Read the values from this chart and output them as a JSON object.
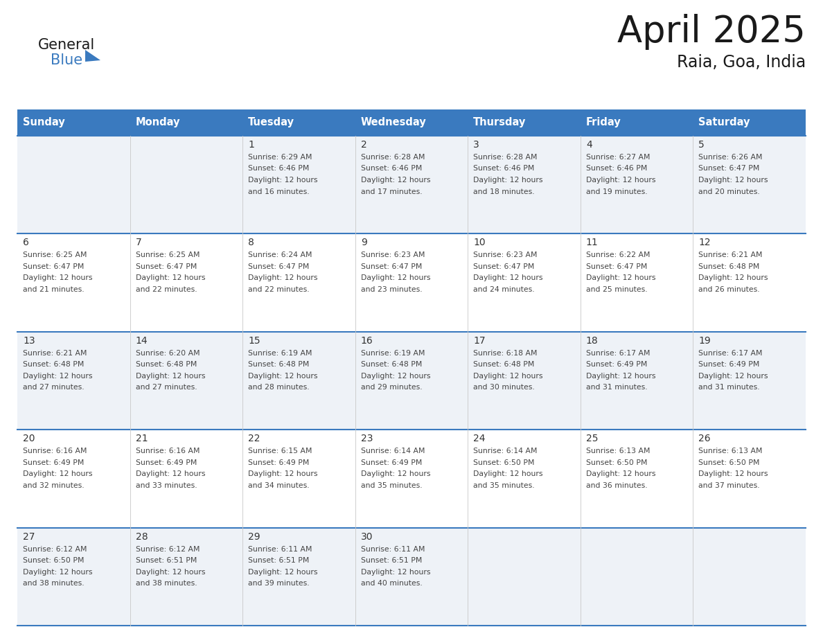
{
  "title": "April 2025",
  "subtitle": "Raia, Goa, India",
  "days_of_week": [
    "Sunday",
    "Monday",
    "Tuesday",
    "Wednesday",
    "Thursday",
    "Friday",
    "Saturday"
  ],
  "header_bg": "#3a7abf",
  "header_text": "#ffffff",
  "row_bg_odd": "#eef2f7",
  "row_bg_even": "#ffffff",
  "border_color": "#3a7abf",
  "day_text_color": "#333333",
  "info_text_color": "#444444",
  "calendar_data": [
    {
      "day": 1,
      "col": 2,
      "row": 0,
      "sunrise": "6:29 AM",
      "sunset": "6:46 PM",
      "daylight_suffix": "16 minutes."
    },
    {
      "day": 2,
      "col": 3,
      "row": 0,
      "sunrise": "6:28 AM",
      "sunset": "6:46 PM",
      "daylight_suffix": "17 minutes."
    },
    {
      "day": 3,
      "col": 4,
      "row": 0,
      "sunrise": "6:28 AM",
      "sunset": "6:46 PM",
      "daylight_suffix": "18 minutes."
    },
    {
      "day": 4,
      "col": 5,
      "row": 0,
      "sunrise": "6:27 AM",
      "sunset": "6:46 PM",
      "daylight_suffix": "19 minutes."
    },
    {
      "day": 5,
      "col": 6,
      "row": 0,
      "sunrise": "6:26 AM",
      "sunset": "6:47 PM",
      "daylight_suffix": "20 minutes."
    },
    {
      "day": 6,
      "col": 0,
      "row": 1,
      "sunrise": "6:25 AM",
      "sunset": "6:47 PM",
      "daylight_suffix": "21 minutes."
    },
    {
      "day": 7,
      "col": 1,
      "row": 1,
      "sunrise": "6:25 AM",
      "sunset": "6:47 PM",
      "daylight_suffix": "22 minutes."
    },
    {
      "day": 8,
      "col": 2,
      "row": 1,
      "sunrise": "6:24 AM",
      "sunset": "6:47 PM",
      "daylight_suffix": "22 minutes."
    },
    {
      "day": 9,
      "col": 3,
      "row": 1,
      "sunrise": "6:23 AM",
      "sunset": "6:47 PM",
      "daylight_suffix": "23 minutes."
    },
    {
      "day": 10,
      "col": 4,
      "row": 1,
      "sunrise": "6:23 AM",
      "sunset": "6:47 PM",
      "daylight_suffix": "24 minutes."
    },
    {
      "day": 11,
      "col": 5,
      "row": 1,
      "sunrise": "6:22 AM",
      "sunset": "6:47 PM",
      "daylight_suffix": "25 minutes."
    },
    {
      "day": 12,
      "col": 6,
      "row": 1,
      "sunrise": "6:21 AM",
      "sunset": "6:48 PM",
      "daylight_suffix": "26 minutes."
    },
    {
      "day": 13,
      "col": 0,
      "row": 2,
      "sunrise": "6:21 AM",
      "sunset": "6:48 PM",
      "daylight_suffix": "27 minutes."
    },
    {
      "day": 14,
      "col": 1,
      "row": 2,
      "sunrise": "6:20 AM",
      "sunset": "6:48 PM",
      "daylight_suffix": "27 minutes."
    },
    {
      "day": 15,
      "col": 2,
      "row": 2,
      "sunrise": "6:19 AM",
      "sunset": "6:48 PM",
      "daylight_suffix": "28 minutes."
    },
    {
      "day": 16,
      "col": 3,
      "row": 2,
      "sunrise": "6:19 AM",
      "sunset": "6:48 PM",
      "daylight_suffix": "29 minutes."
    },
    {
      "day": 17,
      "col": 4,
      "row": 2,
      "sunrise": "6:18 AM",
      "sunset": "6:48 PM",
      "daylight_suffix": "30 minutes."
    },
    {
      "day": 18,
      "col": 5,
      "row": 2,
      "sunrise": "6:17 AM",
      "sunset": "6:49 PM",
      "daylight_suffix": "31 minutes."
    },
    {
      "day": 19,
      "col": 6,
      "row": 2,
      "sunrise": "6:17 AM",
      "sunset": "6:49 PM",
      "daylight_suffix": "31 minutes."
    },
    {
      "day": 20,
      "col": 0,
      "row": 3,
      "sunrise": "6:16 AM",
      "sunset": "6:49 PM",
      "daylight_suffix": "32 minutes."
    },
    {
      "day": 21,
      "col": 1,
      "row": 3,
      "sunrise": "6:16 AM",
      "sunset": "6:49 PM",
      "daylight_suffix": "33 minutes."
    },
    {
      "day": 22,
      "col": 2,
      "row": 3,
      "sunrise": "6:15 AM",
      "sunset": "6:49 PM",
      "daylight_suffix": "34 minutes."
    },
    {
      "day": 23,
      "col": 3,
      "row": 3,
      "sunrise": "6:14 AM",
      "sunset": "6:49 PM",
      "daylight_suffix": "35 minutes."
    },
    {
      "day": 24,
      "col": 4,
      "row": 3,
      "sunrise": "6:14 AM",
      "sunset": "6:50 PM",
      "daylight_suffix": "35 minutes."
    },
    {
      "day": 25,
      "col": 5,
      "row": 3,
      "sunrise": "6:13 AM",
      "sunset": "6:50 PM",
      "daylight_suffix": "36 minutes."
    },
    {
      "day": 26,
      "col": 6,
      "row": 3,
      "sunrise": "6:13 AM",
      "sunset": "6:50 PM",
      "daylight_suffix": "37 minutes."
    },
    {
      "day": 27,
      "col": 0,
      "row": 4,
      "sunrise": "6:12 AM",
      "sunset": "6:50 PM",
      "daylight_suffix": "38 minutes."
    },
    {
      "day": 28,
      "col": 1,
      "row": 4,
      "sunrise": "6:12 AM",
      "sunset": "6:51 PM",
      "daylight_suffix": "38 minutes."
    },
    {
      "day": 29,
      "col": 2,
      "row": 4,
      "sunrise": "6:11 AM",
      "sunset": "6:51 PM",
      "daylight_suffix": "39 minutes."
    },
    {
      "day": 30,
      "col": 3,
      "row": 4,
      "sunrise": "6:11 AM",
      "sunset": "6:51 PM",
      "daylight_suffix": "40 minutes."
    }
  ]
}
